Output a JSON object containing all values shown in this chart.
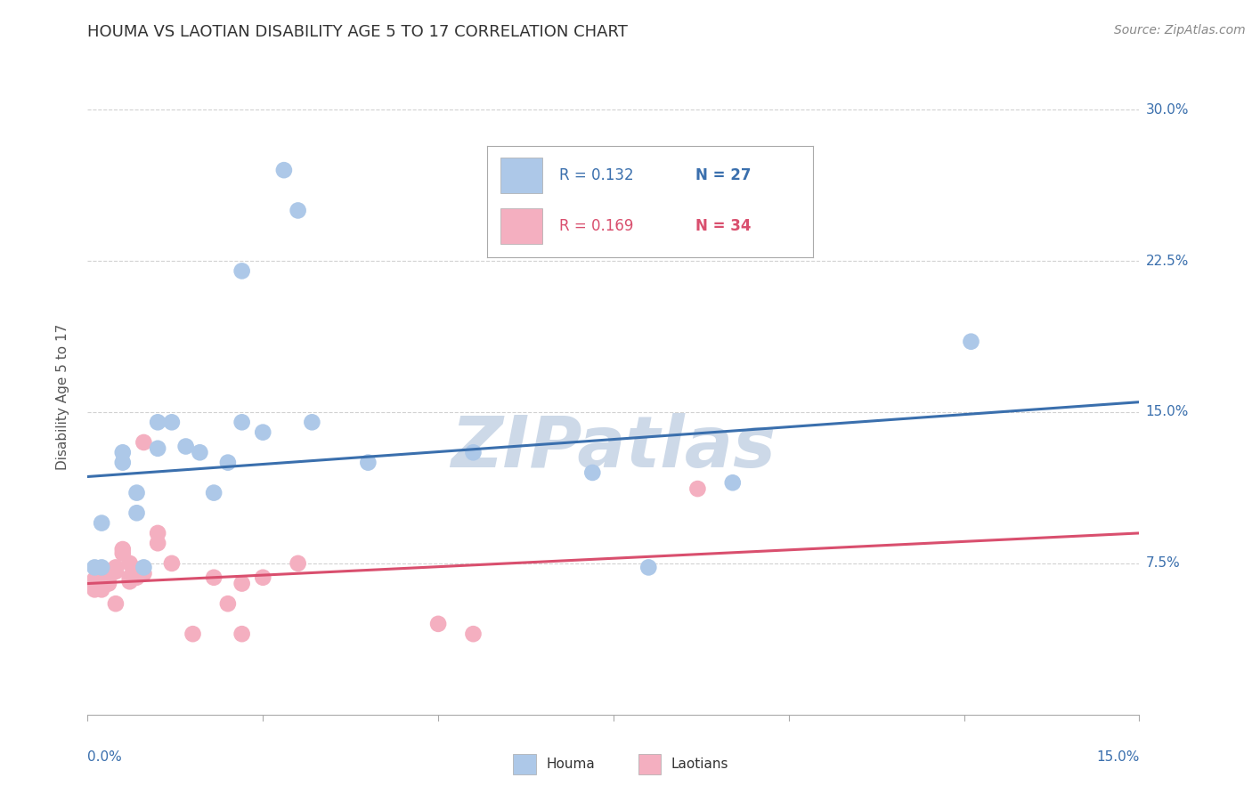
{
  "title": "HOUMA VS LAOTIAN DISABILITY AGE 5 TO 17 CORRELATION CHART",
  "ylabel": "Disability Age 5 to 17",
  "source": "Source: ZipAtlas.com",
  "xlim": [
    0.0,
    0.15
  ],
  "ylim": [
    0.0,
    0.315
  ],
  "xticks": [
    0.0,
    0.025,
    0.05,
    0.075,
    0.1,
    0.125,
    0.15
  ],
  "yticks": [
    0.075,
    0.15,
    0.225,
    0.3
  ],
  "yticklabels": [
    "7.5%",
    "15.0%",
    "22.5%",
    "30.0%"
  ],
  "houma_R": 0.132,
  "houma_N": 27,
  "laotian_R": 0.169,
  "laotian_N": 34,
  "houma_color": "#adc8e8",
  "houma_line_color": "#3a6fad",
  "laotian_color": "#f4afc0",
  "laotian_line_color": "#d94f6e",
  "legend_R_blue": "#3a6fad",
  "legend_N_blue": "#3a6fad",
  "houma_scatter": [
    [
      0.001,
      0.073
    ],
    [
      0.002,
      0.073
    ],
    [
      0.002,
      0.095
    ],
    [
      0.005,
      0.125
    ],
    [
      0.005,
      0.13
    ],
    [
      0.007,
      0.1
    ],
    [
      0.007,
      0.11
    ],
    [
      0.008,
      0.073
    ],
    [
      0.01,
      0.145
    ],
    [
      0.01,
      0.132
    ],
    [
      0.012,
      0.145
    ],
    [
      0.014,
      0.133
    ],
    [
      0.016,
      0.13
    ],
    [
      0.018,
      0.11
    ],
    [
      0.02,
      0.125
    ],
    [
      0.022,
      0.22
    ],
    [
      0.022,
      0.145
    ],
    [
      0.025,
      0.14
    ],
    [
      0.028,
      0.27
    ],
    [
      0.03,
      0.25
    ],
    [
      0.032,
      0.145
    ],
    [
      0.04,
      0.125
    ],
    [
      0.055,
      0.13
    ],
    [
      0.072,
      0.12
    ],
    [
      0.08,
      0.073
    ],
    [
      0.092,
      0.115
    ],
    [
      0.126,
      0.185
    ]
  ],
  "laotian_scatter": [
    [
      0.001,
      0.067
    ],
    [
      0.001,
      0.065
    ],
    [
      0.001,
      0.062
    ],
    [
      0.002,
      0.068
    ],
    [
      0.002,
      0.064
    ],
    [
      0.002,
      0.062
    ],
    [
      0.003,
      0.07
    ],
    [
      0.003,
      0.068
    ],
    [
      0.003,
      0.065
    ],
    [
      0.004,
      0.073
    ],
    [
      0.004,
      0.071
    ],
    [
      0.004,
      0.055
    ],
    [
      0.005,
      0.082
    ],
    [
      0.005,
      0.08
    ],
    [
      0.006,
      0.075
    ],
    [
      0.006,
      0.068
    ],
    [
      0.006,
      0.066
    ],
    [
      0.007,
      0.072
    ],
    [
      0.007,
      0.068
    ],
    [
      0.008,
      0.135
    ],
    [
      0.008,
      0.07
    ],
    [
      0.01,
      0.09
    ],
    [
      0.01,
      0.085
    ],
    [
      0.012,
      0.075
    ],
    [
      0.015,
      0.04
    ],
    [
      0.018,
      0.068
    ],
    [
      0.02,
      0.055
    ],
    [
      0.022,
      0.065
    ],
    [
      0.022,
      0.04
    ],
    [
      0.025,
      0.068
    ],
    [
      0.03,
      0.075
    ],
    [
      0.05,
      0.045
    ],
    [
      0.055,
      0.04
    ],
    [
      0.087,
      0.112
    ]
  ],
  "houma_line_x": [
    0.0,
    0.15
  ],
  "houma_line_y": [
    0.118,
    0.155
  ],
  "laotian_line_x": [
    0.0,
    0.15
  ],
  "laotian_line_y": [
    0.065,
    0.09
  ],
  "watermark": "ZIPatlas",
  "watermark_color": "#cdd9e8",
  "background_color": "#ffffff",
  "grid_color": "#cccccc",
  "tick_color": "#3a6fad",
  "title_color": "#333333"
}
